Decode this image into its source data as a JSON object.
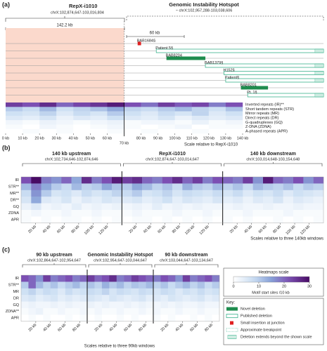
{
  "panel_labels": [
    "(a)",
    "(b)",
    "(c)"
  ],
  "panel_a": {
    "repx": {
      "name": "RepX-i1010",
      "coords": "chrX:102,874,647-103,016,804"
    },
    "hotspot": {
      "name": "Genomic Instability Hotspot",
      "coords": "~ chrX:102,957,288-103,038,606"
    },
    "span_labels": [
      "142.2 kb",
      "60 kb"
    ],
    "deletions": [
      {
        "label": "BAB1684§",
        "type": "insertion",
        "start": 78,
        "end": 80
      },
      {
        "label": "Patient 5§",
        "type": "published",
        "start": 89,
        "extends": true
      },
      {
        "label": "BAB8204",
        "type": "novel",
        "start": 95,
        "end": 118
      },
      {
        "label": "BAB1379§",
        "type": "published",
        "start": 118,
        "extends": true
      },
      {
        "label": "H152§",
        "type": "published",
        "start": 129,
        "extends": true
      },
      {
        "label": "Patient§",
        "type": "published",
        "start": 130,
        "extends": true
      },
      {
        "label": "BAB8201",
        "type": "novel",
        "start": 139,
        "end": 155
      },
      {
        "label": "Pt. 1§",
        "type": "published",
        "start": 143,
        "extends": true
      }
    ],
    "rows": [
      {
        "name": "Inverted repeats (IR)**",
        "values": [
          24,
          22,
          26,
          20,
          23,
          25,
          28,
          22,
          19,
          24,
          21,
          23,
          18,
          22
        ]
      },
      {
        "name": "Short tandem repeats (STR)",
        "values": [
          10,
          8,
          12,
          7,
          9,
          11,
          14,
          9,
          8,
          10,
          12,
          9,
          7,
          11
        ]
      },
      {
        "name": "Mirror repeats (MR)",
        "values": [
          7,
          6,
          9,
          5,
          8,
          6,
          10,
          7,
          5,
          8,
          6,
          9,
          5,
          7
        ]
      },
      {
        "name": "Direct repeats (DR)",
        "values": [
          5,
          4,
          6,
          3,
          5,
          4,
          7,
          5,
          4,
          6,
          3,
          5,
          4,
          5
        ]
      },
      {
        "name": "G-quadruplexes (GQ)",
        "values": [
          2,
          1,
          3,
          2,
          1,
          2,
          3,
          1,
          2,
          2,
          1,
          3,
          1,
          2
        ]
      },
      {
        "name": "Z-DNA (ZDNA)",
        "values": [
          1,
          0,
          2,
          1,
          0,
          1,
          2,
          1,
          0,
          1,
          2,
          0,
          1,
          1
        ]
      },
      {
        "name": "A-phased repeats (APR)",
        "values": [
          0,
          1,
          0,
          1,
          0,
          0,
          1,
          0,
          1,
          0,
          0,
          1,
          0,
          0
        ]
      }
    ],
    "xlim": [
      0,
      140
    ],
    "xticks": [
      {
        "value": 0,
        "label": "0 kb"
      },
      {
        "value": 10,
        "label": "10 kb"
      },
      {
        "value": 20,
        "label": "20 kb"
      },
      {
        "value": 30,
        "label": "30 kb"
      },
      {
        "value": 40,
        "label": "40 kb"
      },
      {
        "value": 50,
        "label": "50 kb"
      },
      {
        "value": 60,
        "label": "60 kb"
      },
      {
        "value": 70,
        "label": "70 kb"
      },
      {
        "value": 80,
        "label": "80 kb"
      },
      {
        "value": 90,
        "label": "90 kb"
      },
      {
        "value": 100,
        "label": "100 kb"
      },
      {
        "value": 110,
        "label": "110 kb"
      },
      {
        "value": 120,
        "label": "120 kb"
      },
      {
        "value": 130,
        "label": "130 kb"
      },
      {
        "value": 140,
        "label": "140 kb"
      }
    ],
    "xlabel": "Scale relative to RepX-i1010"
  },
  "panel_b": {
    "windows": [
      {
        "title": "140 kb upstream",
        "coords": "chrX:102,734,646-102,874,646"
      },
      {
        "title": "RepX-i1010",
        "coords": "chrX:102,874,647-103,014,647"
      },
      {
        "title": "140 kb downstream",
        "coords": "chrX:103,014,648-103,154,648"
      }
    ],
    "rows": [
      {
        "name": "IR",
        "values": [
          22,
          30,
          18,
          16,
          20,
          14,
          26,
          18,
          22,
          28,
          24,
          26,
          20,
          18,
          22,
          26,
          20,
          24,
          18,
          22,
          20,
          18,
          24,
          16,
          28,
          20,
          18,
          22,
          16,
          20
        ]
      },
      {
        "name": "STR**",
        "values": [
          12,
          18,
          14,
          10,
          8,
          12,
          9,
          10,
          14,
          11,
          10,
          14,
          12,
          9,
          11,
          8,
          13,
          10,
          9,
          12,
          9,
          11,
          8,
          12,
          10,
          9,
          11,
          8,
          10,
          9
        ]
      },
      {
        "name": "MR**",
        "values": [
          8,
          16,
          10,
          6,
          7,
          5,
          8,
          6,
          7,
          9,
          8,
          10,
          6,
          7,
          9,
          6,
          8,
          7,
          6,
          8,
          6,
          8,
          5,
          7,
          6,
          8,
          5,
          7,
          6,
          5
        ]
      },
      {
        "name": "DR**",
        "values": [
          6,
          14,
          5,
          4,
          6,
          3,
          5,
          4,
          6,
          5,
          5,
          6,
          4,
          5,
          7,
          4,
          6,
          5,
          4,
          6,
          4,
          5,
          3,
          5,
          4,
          6,
          3,
          5,
          4,
          3
        ]
      },
      {
        "name": "GQ",
        "values": [
          3,
          5,
          2,
          3,
          2,
          4,
          2,
          3,
          2,
          3,
          2,
          3,
          2,
          4,
          2,
          3,
          2,
          3,
          2,
          2,
          2,
          3,
          2,
          2,
          3,
          2,
          2,
          3,
          2,
          2
        ]
      },
      {
        "name": "ZDNA",
        "values": [
          1,
          2,
          1,
          1,
          2,
          1,
          1,
          2,
          1,
          1,
          1,
          2,
          1,
          1,
          1,
          2,
          1,
          1,
          2,
          1,
          1,
          1,
          2,
          1,
          1,
          1,
          2,
          1,
          1,
          1
        ]
      },
      {
        "name": "APR",
        "values": [
          1,
          0,
          1,
          0,
          1,
          1,
          0,
          1,
          0,
          1,
          0,
          1,
          1,
          0,
          1,
          0,
          1,
          0,
          1,
          0,
          1,
          0,
          1,
          0,
          0,
          1,
          0,
          1,
          0,
          1
        ]
      }
    ],
    "xlim": [
      0,
      140
    ],
    "xticks": [
      {
        "value": 20,
        "label": "20 kb"
      },
      {
        "value": 40,
        "label": "40 kb"
      },
      {
        "value": 60,
        "label": "60 kb"
      },
      {
        "value": 80,
        "label": "80 kb"
      },
      {
        "value": 100,
        "label": "100 kb"
      },
      {
        "value": 120,
        "label": "120 kb"
      }
    ],
    "xlabel": "Scales relative to three 140kb windows"
  },
  "panel_c": {
    "windows": [
      {
        "title": "90 kb upstream",
        "coords": "chrX:102,864,647-102,954,647"
      },
      {
        "title": "Genomic Instability Hotspot",
        "coords": "chrX:102,954,647-103,044,647"
      },
      {
        "title": "90 kb downstream",
        "coords": "chrX:103,044,647-103,134,647"
      }
    ],
    "rows": [
      {
        "name": "IR",
        "values": [
          22,
          20,
          16,
          24,
          18,
          20,
          22,
          18,
          20,
          24,
          20,
          22,
          26,
          18,
          20,
          24,
          22,
          20,
          18,
          22,
          20,
          16,
          24,
          18,
          20,
          22,
          18
        ]
      },
      {
        "name": "STR**",
        "values": [
          10,
          20,
          12,
          9,
          11,
          8,
          10,
          12,
          9,
          11,
          9,
          13,
          10,
          12,
          9,
          11,
          10,
          12,
          9,
          11,
          8,
          10,
          12,
          9,
          11,
          8,
          10
        ]
      },
      {
        "name": "MR",
        "values": [
          7,
          9,
          6,
          8,
          7,
          5,
          8,
          6,
          7,
          8,
          7,
          9,
          6,
          8,
          7,
          6,
          8,
          7,
          6,
          8,
          7,
          5,
          7,
          6,
          8,
          6,
          7
        ]
      },
      {
        "name": "DR",
        "values": [
          5,
          6,
          4,
          5,
          6,
          4,
          5,
          4,
          5,
          6,
          5,
          4,
          6,
          5,
          4,
          5,
          6,
          4,
          5,
          4,
          6,
          5,
          4,
          5,
          6,
          4,
          5
        ]
      },
      {
        "name": "GQ",
        "values": [
          2,
          3,
          2,
          2,
          3,
          2,
          3,
          2,
          2,
          3,
          2,
          3,
          2,
          2,
          3,
          2,
          3,
          2,
          2,
          3,
          2,
          3,
          2,
          2,
          3,
          2,
          2
        ]
      },
      {
        "name": "ZDNA**",
        "values": [
          1,
          2,
          3,
          1,
          1,
          2,
          1,
          1,
          2,
          1,
          2,
          1,
          1,
          2,
          1,
          1,
          2,
          1,
          2,
          1,
          1,
          2,
          1,
          1,
          2,
          1,
          1
        ]
      },
      {
        "name": "APR",
        "values": [
          0,
          1,
          0,
          1,
          0,
          0,
          1,
          0,
          1,
          0,
          1,
          0,
          0,
          1,
          0,
          1,
          0,
          0,
          1,
          0,
          1,
          0,
          0,
          1,
          0,
          1,
          0
        ]
      }
    ],
    "xlim": [
      0,
      90
    ],
    "xticks": [
      {
        "value": 20,
        "label": "20 kb"
      },
      {
        "value": 40,
        "label": "40 kb"
      },
      {
        "value": 60,
        "label": "60 kb"
      },
      {
        "value": 80,
        "label": "80 kb"
      }
    ],
    "xlabel": "Scales relative to three 90kb windows"
  },
  "colorbar": {
    "title": "Heatmaps scale",
    "lim": [
      0,
      30
    ],
    "ticks": [
      0,
      10,
      20,
      30
    ],
    "label": "Motif start sites /10 kb"
  },
  "key": {
    "title": "Key:",
    "items": [
      {
        "label": "Novel deletion",
        "type": "novel"
      },
      {
        "label": "Published deletion",
        "type": "published"
      },
      {
        "label": "Small insertion at junction",
        "type": "insertion"
      },
      {
        "label": "Approximate breakpoint",
        "type": "approximate"
      },
      {
        "label": "Deletion extends beyond the shown scale",
        "type": "extends"
      }
    ]
  }
}
